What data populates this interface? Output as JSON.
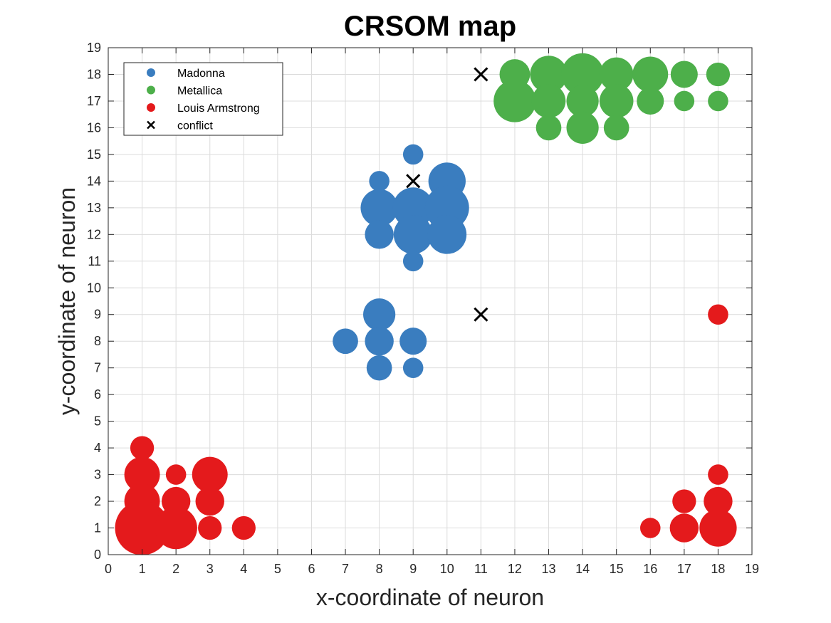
{
  "chart_data": {
    "type": "scatter",
    "title": "CRSOM map",
    "xlabel": "x-coordinate of neuron",
    "ylabel": "y-coordinate of neuron",
    "xlim": [
      0,
      19
    ],
    "ylim": [
      0,
      19
    ],
    "xticks": [
      "0",
      "1",
      "2",
      "3",
      "4",
      "5",
      "6",
      "7",
      "8",
      "9",
      "10",
      "11",
      "12",
      "13",
      "14",
      "15",
      "16",
      "17",
      "18",
      "19"
    ],
    "yticks": [
      "0",
      "1",
      "2",
      "3",
      "4",
      "5",
      "6",
      "7",
      "8",
      "9",
      "10",
      "11",
      "12",
      "13",
      "14",
      "15",
      "16",
      "17",
      "18",
      "19"
    ],
    "grid": true,
    "legend_position": "top-left",
    "series": [
      {
        "name": "Madonna",
        "color": "#3A7DBF",
        "marker": "circle",
        "points": [
          {
            "x": 9,
            "y": 15,
            "size": 0.6
          },
          {
            "x": 8,
            "y": 14,
            "size": 0.6
          },
          {
            "x": 10,
            "y": 14,
            "size": 1.1
          },
          {
            "x": 8,
            "y": 13,
            "size": 1.1
          },
          {
            "x": 9,
            "y": 13,
            "size": 1.2
          },
          {
            "x": 10,
            "y": 13,
            "size": 1.3
          },
          {
            "x": 8,
            "y": 12,
            "size": 0.85
          },
          {
            "x": 9,
            "y": 12,
            "size": 1.15
          },
          {
            "x": 10,
            "y": 12,
            "size": 1.15
          },
          {
            "x": 9,
            "y": 11,
            "size": 0.6
          },
          {
            "x": 8,
            "y": 9,
            "size": 0.95
          },
          {
            "x": 7,
            "y": 8,
            "size": 0.75
          },
          {
            "x": 8,
            "y": 8,
            "size": 0.85
          },
          {
            "x": 9,
            "y": 8,
            "size": 0.8
          },
          {
            "x": 8,
            "y": 7,
            "size": 0.75
          },
          {
            "x": 9,
            "y": 7,
            "size": 0.6
          }
        ]
      },
      {
        "name": "Metallica",
        "color": "#4DAF4A",
        "marker": "circle",
        "points": [
          {
            "x": 12,
            "y": 18,
            "size": 0.9
          },
          {
            "x": 13,
            "y": 18,
            "size": 1.1
          },
          {
            "x": 14,
            "y": 18,
            "size": 1.25
          },
          {
            "x": 15,
            "y": 18,
            "size": 1.0
          },
          {
            "x": 16,
            "y": 18,
            "size": 1.05
          },
          {
            "x": 17,
            "y": 18,
            "size": 0.8
          },
          {
            "x": 18,
            "y": 18,
            "size": 0.7
          },
          {
            "x": 12,
            "y": 17,
            "size": 1.25
          },
          {
            "x": 13,
            "y": 17,
            "size": 1.0
          },
          {
            "x": 14,
            "y": 17,
            "size": 0.95
          },
          {
            "x": 15,
            "y": 17,
            "size": 1.0
          },
          {
            "x": 16,
            "y": 17,
            "size": 0.8
          },
          {
            "x": 17,
            "y": 17,
            "size": 0.6
          },
          {
            "x": 18,
            "y": 17,
            "size": 0.6
          },
          {
            "x": 13,
            "y": 16,
            "size": 0.75
          },
          {
            "x": 14,
            "y": 16,
            "size": 0.95
          },
          {
            "x": 15,
            "y": 16,
            "size": 0.75
          }
        ]
      },
      {
        "name": "Louis Armstrong",
        "color": "#E41A1C",
        "marker": "circle",
        "points": [
          {
            "x": 1,
            "y": 4,
            "size": 0.7
          },
          {
            "x": 1,
            "y": 3,
            "size": 1.05
          },
          {
            "x": 2,
            "y": 3,
            "size": 0.6
          },
          {
            "x": 3,
            "y": 3,
            "size": 1.05
          },
          {
            "x": 1,
            "y": 2,
            "size": 1.05
          },
          {
            "x": 2,
            "y": 2,
            "size": 0.85
          },
          {
            "x": 3,
            "y": 2,
            "size": 0.85
          },
          {
            "x": 1,
            "y": 1,
            "size": 1.6
          },
          {
            "x": 2,
            "y": 1,
            "size": 1.25
          },
          {
            "x": 3,
            "y": 1,
            "size": 0.7
          },
          {
            "x": 4,
            "y": 1,
            "size": 0.7
          },
          {
            "x": 18,
            "y": 9,
            "size": 0.6
          },
          {
            "x": 18,
            "y": 3,
            "size": 0.6
          },
          {
            "x": 17,
            "y": 2,
            "size": 0.7
          },
          {
            "x": 18,
            "y": 2,
            "size": 0.85
          },
          {
            "x": 16,
            "y": 1,
            "size": 0.6
          },
          {
            "x": 17,
            "y": 1,
            "size": 0.85
          },
          {
            "x": 18,
            "y": 1,
            "size": 1.1
          }
        ]
      },
      {
        "name": "conflict",
        "color": "#000000",
        "marker": "x",
        "points": [
          {
            "x": 11,
            "y": 18
          },
          {
            "x": 9,
            "y": 14
          },
          {
            "x": 11,
            "y": 9
          }
        ]
      }
    ]
  }
}
